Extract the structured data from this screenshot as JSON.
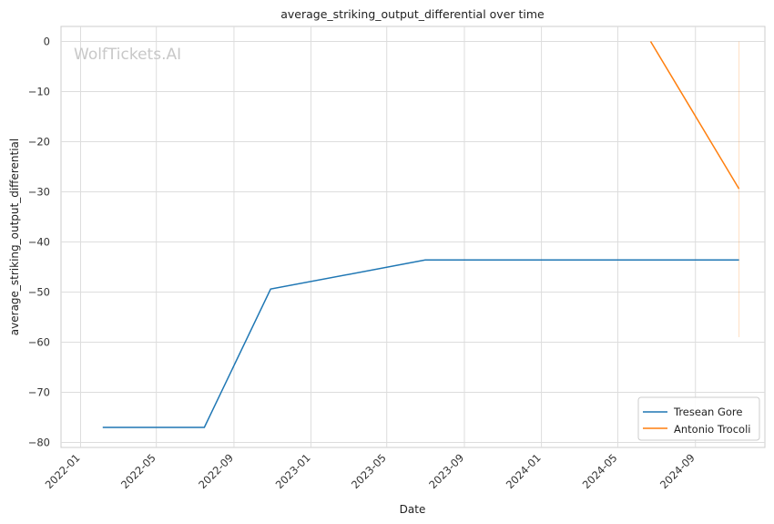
{
  "chart_data": {
    "type": "line",
    "title": "average_striking_output_differential over time",
    "xlabel": "Date",
    "ylabel": "average_striking_output_differential",
    "watermark": "WolfTickets.AI",
    "x_ticks": [
      "2022-01",
      "2022-05",
      "2022-09",
      "2023-01",
      "2023-05",
      "2023-09",
      "2024-01",
      "2024-05",
      "2024-09"
    ],
    "y_ticks": [
      0,
      -10,
      -20,
      -30,
      -40,
      -50,
      -60,
      -70,
      -80
    ],
    "xlim": [
      "2021-12-01",
      "2024-12-20"
    ],
    "ylim": [
      -81,
      3
    ],
    "grid": true,
    "legend_position": "lower-right",
    "series": [
      {
        "name": "Tresean Gore",
        "color": "#1f77b4",
        "points": [
          {
            "x": "2022-02-05",
            "y": -77
          },
          {
            "x": "2022-07-16",
            "y": -77
          },
          {
            "x": "2022-10-29",
            "y": -49.4
          },
          {
            "x": "2023-07-01",
            "y": -43.6
          },
          {
            "x": "2024-11-09",
            "y": -43.6
          }
        ]
      },
      {
        "name": "Antonio Trocoli",
        "color": "#ff7f0e",
        "points": [
          {
            "x": "2024-06-22",
            "y": 0
          },
          {
            "x": "2024-11-09",
            "y": -29.4
          }
        ],
        "band": {
          "x": "2024-11-09",
          "low": -59,
          "high": 0
        }
      }
    ]
  }
}
